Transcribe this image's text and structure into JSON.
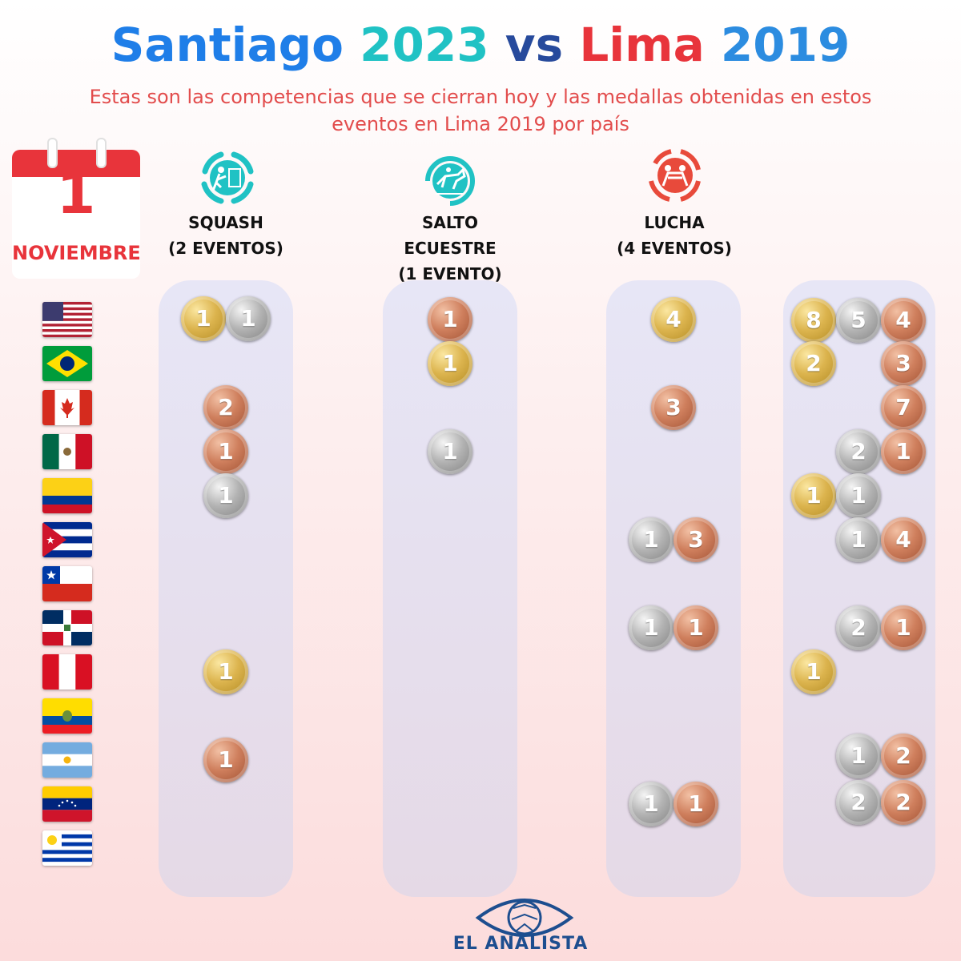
{
  "title": {
    "parts": [
      {
        "text": "Santiago ",
        "color": "#1f7ee8"
      },
      {
        "text": "2023 ",
        "color": "#20c2c4"
      },
      {
        "text": "vs ",
        "color": "#274a9c"
      },
      {
        "text": "Lima ",
        "color": "#e8343b"
      },
      {
        "text": "2019",
        "color": "#2c8ce0"
      }
    ]
  },
  "subtitle": "Estas son las competencias que se cierran hoy y las medallas obtenidas en estos eventos en Lima 2019 por país",
  "calendar": {
    "day": "1",
    "month": "NOVIEMBRE"
  },
  "sports": [
    {
      "line1": "SQUASH",
      "line2": "(2 EVENTOS)",
      "line3": "",
      "icon": "squash-icon",
      "icon_color": "#20c2c4"
    },
    {
      "line1": "SALTO",
      "line2": "ECUESTRE",
      "line3": "(1 EVENTO)",
      "icon": "equestrian-jumping-icon",
      "icon_color": "#20c2c4"
    },
    {
      "line1": "LUCHA",
      "line2": "(4 EVENTOS)",
      "line3": "",
      "icon": "wrestling-icon",
      "icon_color": "#e84a3b"
    }
  ],
  "countries": [
    "usa",
    "brazil",
    "canada",
    "mexico",
    "colombia",
    "cuba",
    "chile",
    "dominican-republic",
    "peru",
    "ecuador",
    "argentina",
    "venezuela",
    "uruguay"
  ],
  "medals": {
    "squash": [
      {
        "row": 0,
        "type": "gold",
        "value": "1"
      },
      {
        "row": 0,
        "type": "silver",
        "value": "1"
      },
      {
        "row": 2,
        "type": "bronze",
        "value": "2"
      },
      {
        "row": 3,
        "type": "bronze",
        "value": "1"
      },
      {
        "row": 4,
        "type": "silver",
        "value": "1"
      },
      {
        "row": 8,
        "type": "gold",
        "value": "1"
      },
      {
        "row": 10,
        "type": "bronze",
        "value": "1"
      }
    ],
    "equestrian": [
      {
        "row": 0,
        "type": "bronze",
        "value": "1"
      },
      {
        "row": 1,
        "type": "gold",
        "value": "1"
      },
      {
        "row": 3,
        "type": "silver",
        "value": "1"
      }
    ],
    "wrestling": [
      {
        "row": 0,
        "type": "gold",
        "value": "4"
      },
      {
        "row": 2,
        "type": "bronze",
        "value": "3"
      },
      {
        "row": 5,
        "type": "silver",
        "value": "1"
      },
      {
        "row": 5,
        "type": "bronze",
        "value": "3"
      },
      {
        "row": 7,
        "type": "silver",
        "value": "1"
      },
      {
        "row": 7,
        "type": "bronze",
        "value": "1"
      },
      {
        "row": 11,
        "type": "silver",
        "value": "1"
      },
      {
        "row": 11,
        "type": "bronze",
        "value": "1"
      }
    ],
    "total": [
      {
        "row": 0,
        "type": "gold",
        "value": "8"
      },
      {
        "row": 0,
        "type": "silver",
        "value": "5"
      },
      {
        "row": 0,
        "type": "bronze",
        "value": "4"
      },
      {
        "row": 1,
        "type": "gold",
        "value": "2"
      },
      {
        "row": 1,
        "type": "bronze",
        "value": "3"
      },
      {
        "row": 2,
        "type": "bronze",
        "value": "7"
      },
      {
        "row": 3,
        "type": "silver",
        "value": "2"
      },
      {
        "row": 3,
        "type": "bronze",
        "value": "1"
      },
      {
        "row": 4,
        "type": "gold",
        "value": "1"
      },
      {
        "row": 4,
        "type": "silver",
        "value": "1"
      },
      {
        "row": 5,
        "type": "silver",
        "value": "1"
      },
      {
        "row": 5,
        "type": "bronze",
        "value": "4"
      },
      {
        "row": 7,
        "type": "silver",
        "value": "2"
      },
      {
        "row": 7,
        "type": "bronze",
        "value": "1"
      },
      {
        "row": 8,
        "type": "gold",
        "value": "1"
      },
      {
        "row": 10,
        "type": "silver",
        "value": "1"
      },
      {
        "row": 10,
        "type": "bronze",
        "value": "2"
      },
      {
        "row": 11,
        "type": "silver",
        "value": "2"
      },
      {
        "row": 11,
        "type": "bronze",
        "value": "2"
      }
    ]
  },
  "logo": {
    "text": "EL ANALISTA",
    "color": "#1d4e8f"
  }
}
